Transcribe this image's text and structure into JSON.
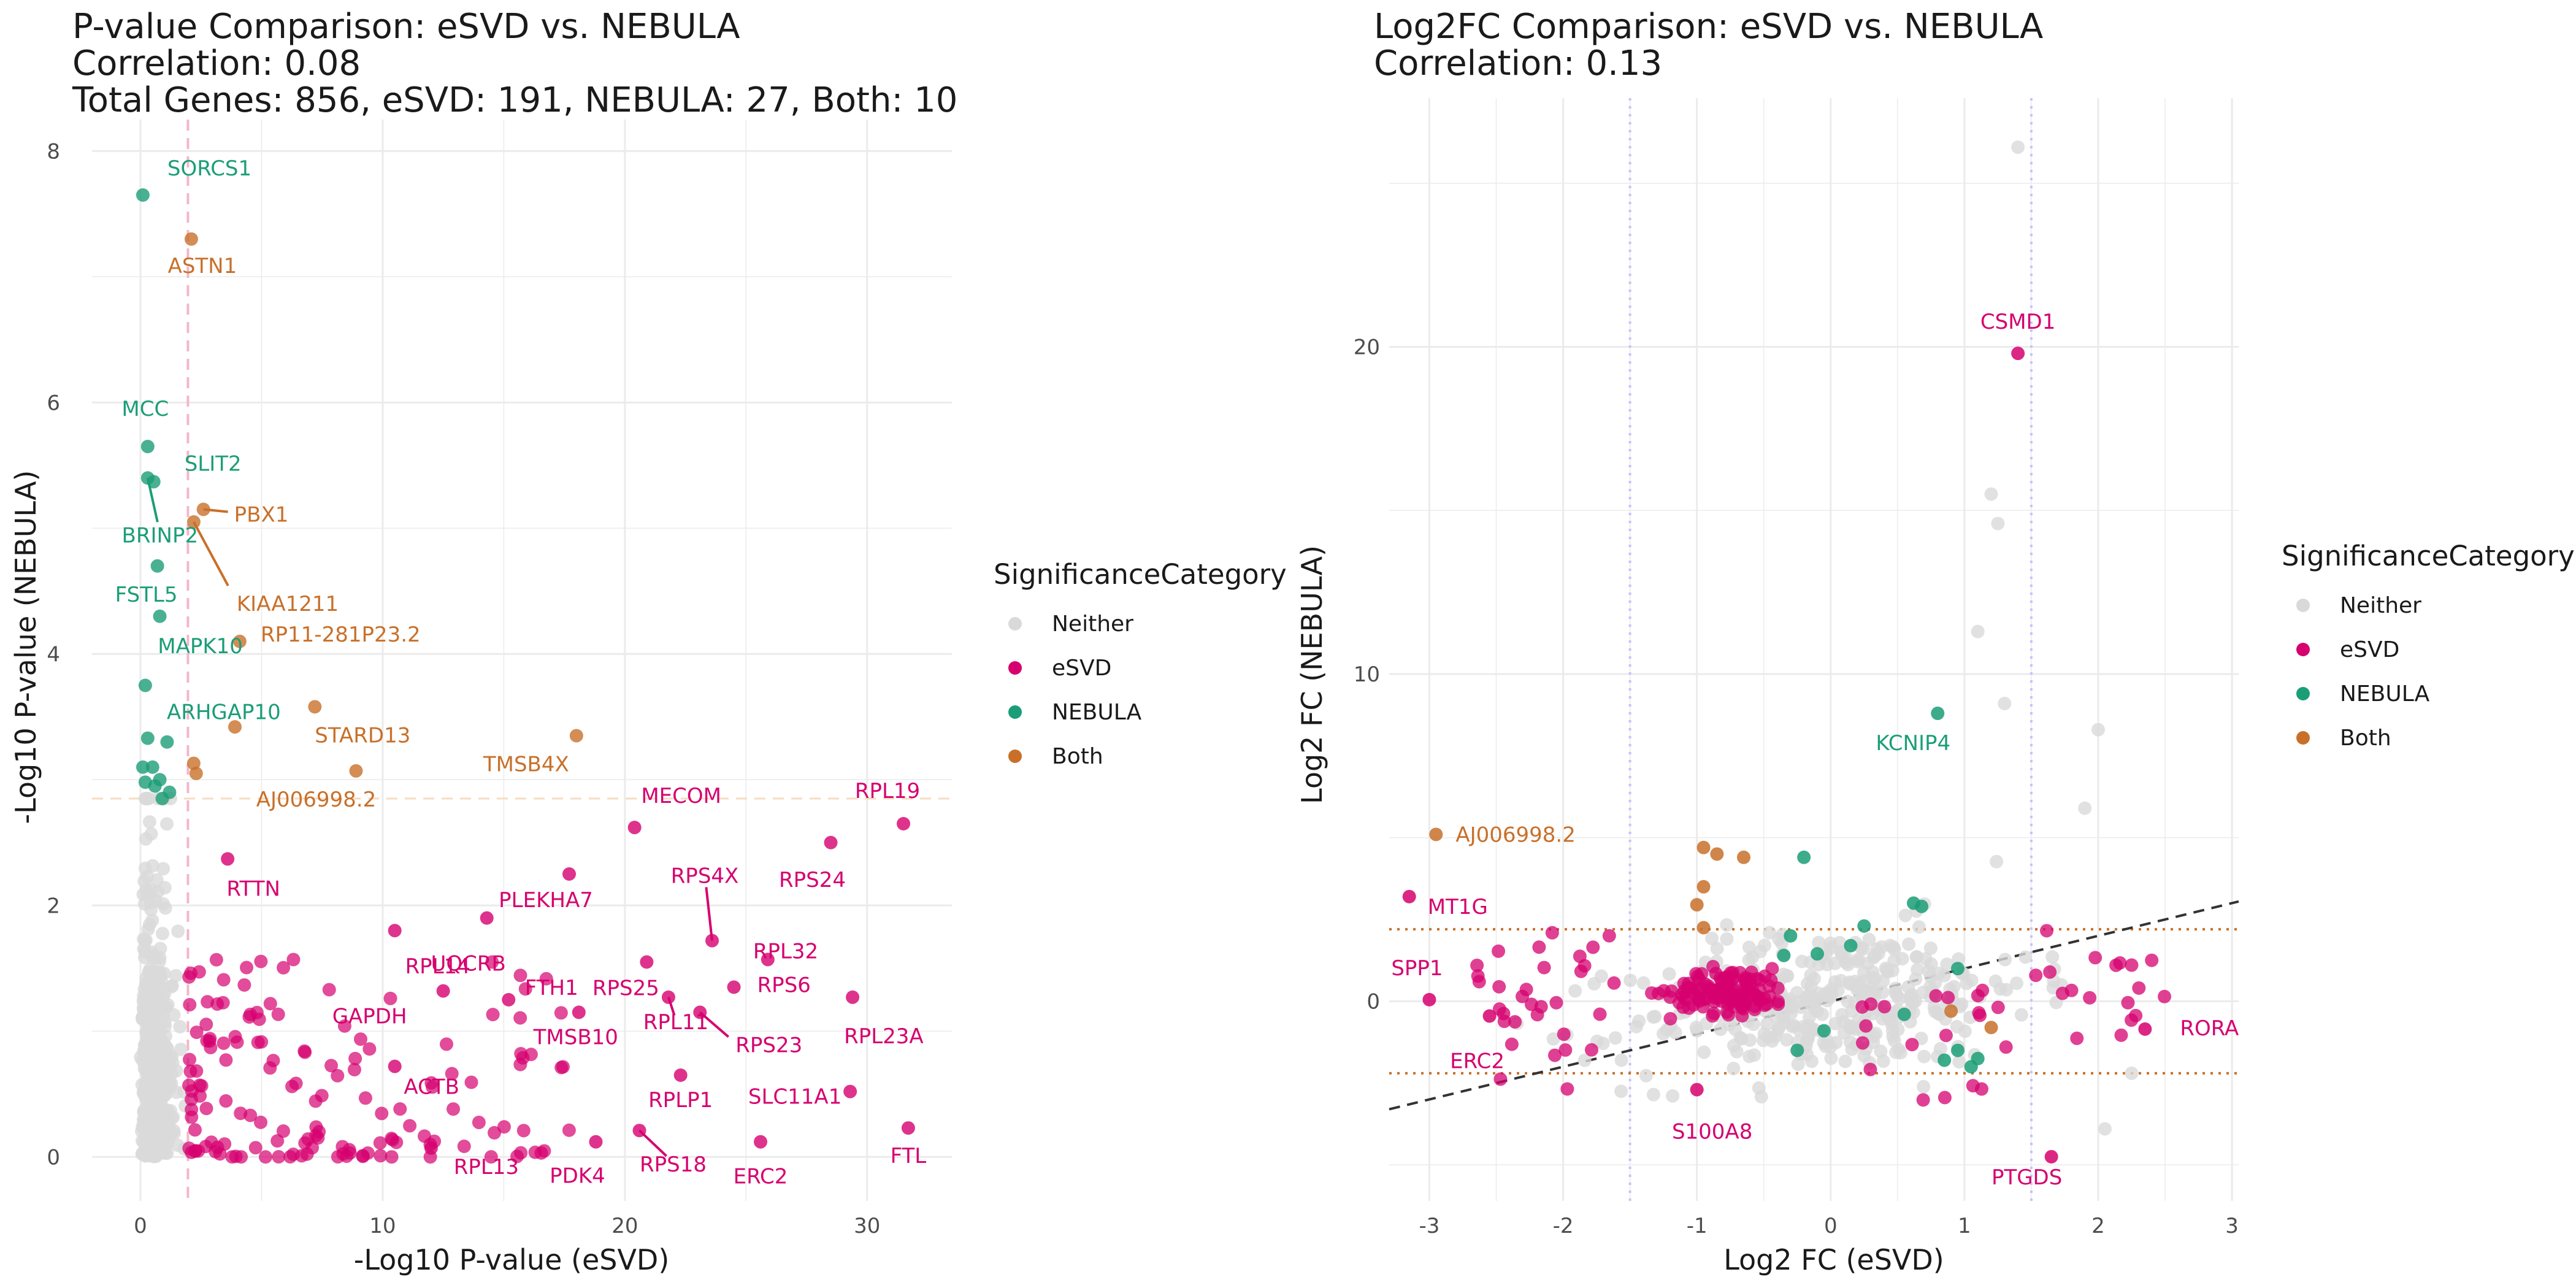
{
  "colors": {
    "Neither": "#d9d9d9",
    "eSVD": "#d6006f",
    "NEBULA": "#1b9e77",
    "Both": "#c8702a",
    "grid": "#ebebeb",
    "vline": "#c9c0ff"
  },
  "legend": {
    "title": "SignificanceCategory",
    "items": [
      "Neither",
      "eSVD",
      "NEBULA",
      "Both"
    ]
  },
  "chart_data": [
    {
      "type": "scatter",
      "title_lines": [
        "P-value Comparison: eSVD vs. NEBULA",
        "Correlation: 0.08",
        "Total Genes: 856, eSVD: 191, NEBULA: 27, Both: 10"
      ],
      "xlabel": "-Log10 P-value (eSVD)",
      "ylabel": "-Log10 P-value (NEBULA)",
      "xlim": [
        -2,
        33.5
      ],
      "ylim": [
        -0.35,
        8.25
      ],
      "xticks": [
        0,
        10,
        20,
        30
      ],
      "yticks": [
        0,
        2,
        4,
        6,
        8
      ],
      "threshold_x": 1.96,
      "threshold_y": 2.85,
      "labeled_points": [
        {
          "label": "SORCS1",
          "x": 0.1,
          "y": 7.65,
          "cat": "NEBULA"
        },
        {
          "label": "ASTN1",
          "x": 2.1,
          "y": 7.3,
          "cat": "Both"
        },
        {
          "label": "MCC",
          "x": 0.3,
          "y": 5.65,
          "cat": "NEBULA"
        },
        {
          "label": "SLIT2",
          "x": 0.55,
          "y": 5.37,
          "cat": "NEBULA"
        },
        {
          "label": "BRINP2",
          "x": 0.3,
          "y": 5.4,
          "cat": "NEBULA"
        },
        {
          "label": "PBX1",
          "x": 2.6,
          "y": 5.15,
          "cat": "Both"
        },
        {
          "label": "KIAA1211",
          "x": 2.2,
          "y": 5.05,
          "cat": "Both"
        },
        {
          "label": "FSTL5",
          "x": 0.7,
          "y": 4.7,
          "cat": "NEBULA"
        },
        {
          "label": "MAPK10",
          "x": 0.8,
          "y": 4.3,
          "cat": "NEBULA"
        },
        {
          "label": "RP11-281P23.2",
          "x": 4.1,
          "y": 4.1,
          "cat": "Both"
        },
        {
          "label": "ARHGAP10",
          "x": 0.2,
          "y": 3.75,
          "cat": "NEBULA"
        },
        {
          "label": "STARD13",
          "x": 7.2,
          "y": 3.58,
          "cat": "Both"
        },
        {
          "label": "TMSB4X",
          "x": 18.0,
          "y": 3.35,
          "cat": "Both"
        },
        {
          "label": "AJ006998.2",
          "x": 8.9,
          "y": 3.07,
          "cat": "Both"
        },
        {
          "label": "MECOM",
          "x": 20.4,
          "y": 2.62,
          "cat": "eSVD"
        },
        {
          "label": "RPL19",
          "x": 31.5,
          "y": 2.65,
          "cat": "eSVD"
        },
        {
          "label": "RPS24",
          "x": 28.5,
          "y": 2.5,
          "cat": "eSVD"
        },
        {
          "label": "RPS4X",
          "x": 23.6,
          "y": 1.72,
          "cat": "eSVD"
        },
        {
          "label": "PLEKHA7",
          "x": 17.7,
          "y": 2.25,
          "cat": "eSVD"
        },
        {
          "label": "RTTN",
          "x": 3.6,
          "y": 2.37,
          "cat": "eSVD"
        },
        {
          "label": "UQCRB",
          "x": 10.5,
          "y": 1.8,
          "cat": "eSVD"
        },
        {
          "label": "RPL14",
          "x": 14.3,
          "y": 1.9,
          "cat": "eSVD"
        },
        {
          "label": "RPS25",
          "x": 20.9,
          "y": 1.55,
          "cat": "eSVD"
        },
        {
          "label": "RPL32",
          "x": 25.9,
          "y": 1.57,
          "cat": "eSVD"
        },
        {
          "label": "GAPDH",
          "x": 12.5,
          "y": 1.32,
          "cat": "eSVD"
        },
        {
          "label": "FTH1",
          "x": 15.2,
          "y": 1.25,
          "cat": "eSVD"
        },
        {
          "label": "RPS6",
          "x": 24.5,
          "y": 1.35,
          "cat": "eSVD"
        },
        {
          "label": "TMSB10",
          "x": 18.1,
          "y": 1.15,
          "cat": "eSVD"
        },
        {
          "label": "RPL11",
          "x": 21.8,
          "y": 1.27,
          "cat": "eSVD"
        },
        {
          "label": "RPS23",
          "x": 23.1,
          "y": 1.15,
          "cat": "eSVD"
        },
        {
          "label": "RPL23A",
          "x": 29.4,
          "y": 1.27,
          "cat": "eSVD"
        },
        {
          "label": "ACTB",
          "x": 10.5,
          "y": 0.72,
          "cat": "eSVD"
        },
        {
          "label": "RPLP1",
          "x": 22.3,
          "y": 0.65,
          "cat": "eSVD"
        },
        {
          "label": "SLC11A1",
          "x": 29.3,
          "y": 0.52,
          "cat": "eSVD"
        },
        {
          "label": "RPL13",
          "x": 12.0,
          "y": 0.07,
          "cat": "eSVD"
        },
        {
          "label": "PDK4",
          "x": 18.8,
          "y": 0.12,
          "cat": "eSVD"
        },
        {
          "label": "RPS18",
          "x": 20.6,
          "y": 0.21,
          "cat": "eSVD"
        },
        {
          "label": "ERC2",
          "x": 25.6,
          "y": 0.12,
          "cat": "eSVD"
        },
        {
          "label": "FTL",
          "x": 31.7,
          "y": 0.23,
          "cat": "eSVD"
        }
      ],
      "extra_points": {
        "NEBULA": [
          [
            0.1,
            3.1
          ],
          [
            0.3,
            3.33
          ],
          [
            0.5,
            3.1
          ],
          [
            1.1,
            3.3
          ],
          [
            0.8,
            3.0
          ],
          [
            1.2,
            2.9
          ],
          [
            0.9,
            2.85
          ],
          [
            0.6,
            2.95
          ],
          [
            0.2,
            2.98
          ]
        ],
        "Both": [
          [
            2.2,
            3.13
          ],
          [
            2.3,
            3.05
          ],
          [
            3.9,
            3.42
          ]
        ]
      }
    },
    {
      "type": "scatter",
      "title_lines": [
        "Log2FC Comparison: eSVD vs. NEBULA",
        "Correlation: 0.13"
      ],
      "xlabel": "Log2 FC (eSVD)",
      "ylabel": "Log2 FC (NEBULA)",
      "xlim": [
        -3.3,
        3.05
      ],
      "ylim": [
        -6.1,
        27.6
      ],
      "xticks": [
        -3,
        -2,
        -1,
        0,
        1,
        2,
        3
      ],
      "yticks": [
        0,
        10,
        20
      ],
      "threshold_x": [
        -1.5,
        1.5
      ],
      "threshold_y": [
        -2.2,
        2.2
      ],
      "fit_line": {
        "intercept": 0.0,
        "slope": 1.0
      },
      "labeled_points": [
        {
          "label": "CSMD1",
          "x": 1.4,
          "y": 19.8,
          "cat": "eSVD"
        },
        {
          "label": "KCNIP4",
          "x": 0.8,
          "y": 8.8,
          "cat": "NEBULA"
        },
        {
          "label": "AJ006998.2",
          "x": -2.95,
          "y": 5.1,
          "cat": "Both"
        },
        {
          "label": "MT1G",
          "x": -3.15,
          "y": 3.2,
          "cat": "eSVD"
        },
        {
          "label": "SPP1",
          "x": -3.0,
          "y": 0.05,
          "cat": "eSVD"
        },
        {
          "label": "ERC2",
          "x": -2.55,
          "y": -0.45,
          "cat": "eSVD"
        },
        {
          "label": "S100A8",
          "x": -1.0,
          "y": -2.7,
          "cat": "eSVD"
        },
        {
          "label": "PTGDS",
          "x": 1.65,
          "y": -4.75,
          "cat": "eSVD"
        },
        {
          "label": "RORA",
          "x": 2.35,
          "y": -0.85,
          "cat": "eSVD"
        }
      ],
      "extra_points": {
        "NEBULA": [
          [
            -0.2,
            4.4
          ],
          [
            0.62,
            3.0
          ],
          [
            0.68,
            2.9
          ],
          [
            -0.3,
            2.0
          ],
          [
            -0.1,
            1.45
          ],
          [
            0.25,
            2.3
          ],
          [
            0.15,
            1.7
          ],
          [
            -0.35,
            1.4
          ],
          [
            0.95,
            1.0
          ],
          [
            -0.05,
            -0.9
          ],
          [
            -0.25,
            -1.5
          ],
          [
            0.55,
            -0.4
          ],
          [
            0.95,
            -1.5
          ],
          [
            1.1,
            -1.75
          ],
          [
            1.05,
            -2.0
          ],
          [
            0.85,
            -1.8
          ]
        ],
        "Both": [
          [
            -0.95,
            4.7
          ],
          [
            -0.85,
            4.5
          ],
          [
            -0.65,
            4.4
          ],
          [
            -0.95,
            3.5
          ],
          [
            -1.0,
            2.95
          ],
          [
            -0.95,
            2.25
          ],
          [
            1.2,
            -0.8
          ],
          [
            0.9,
            -0.3
          ]
        ]
      }
    }
  ]
}
